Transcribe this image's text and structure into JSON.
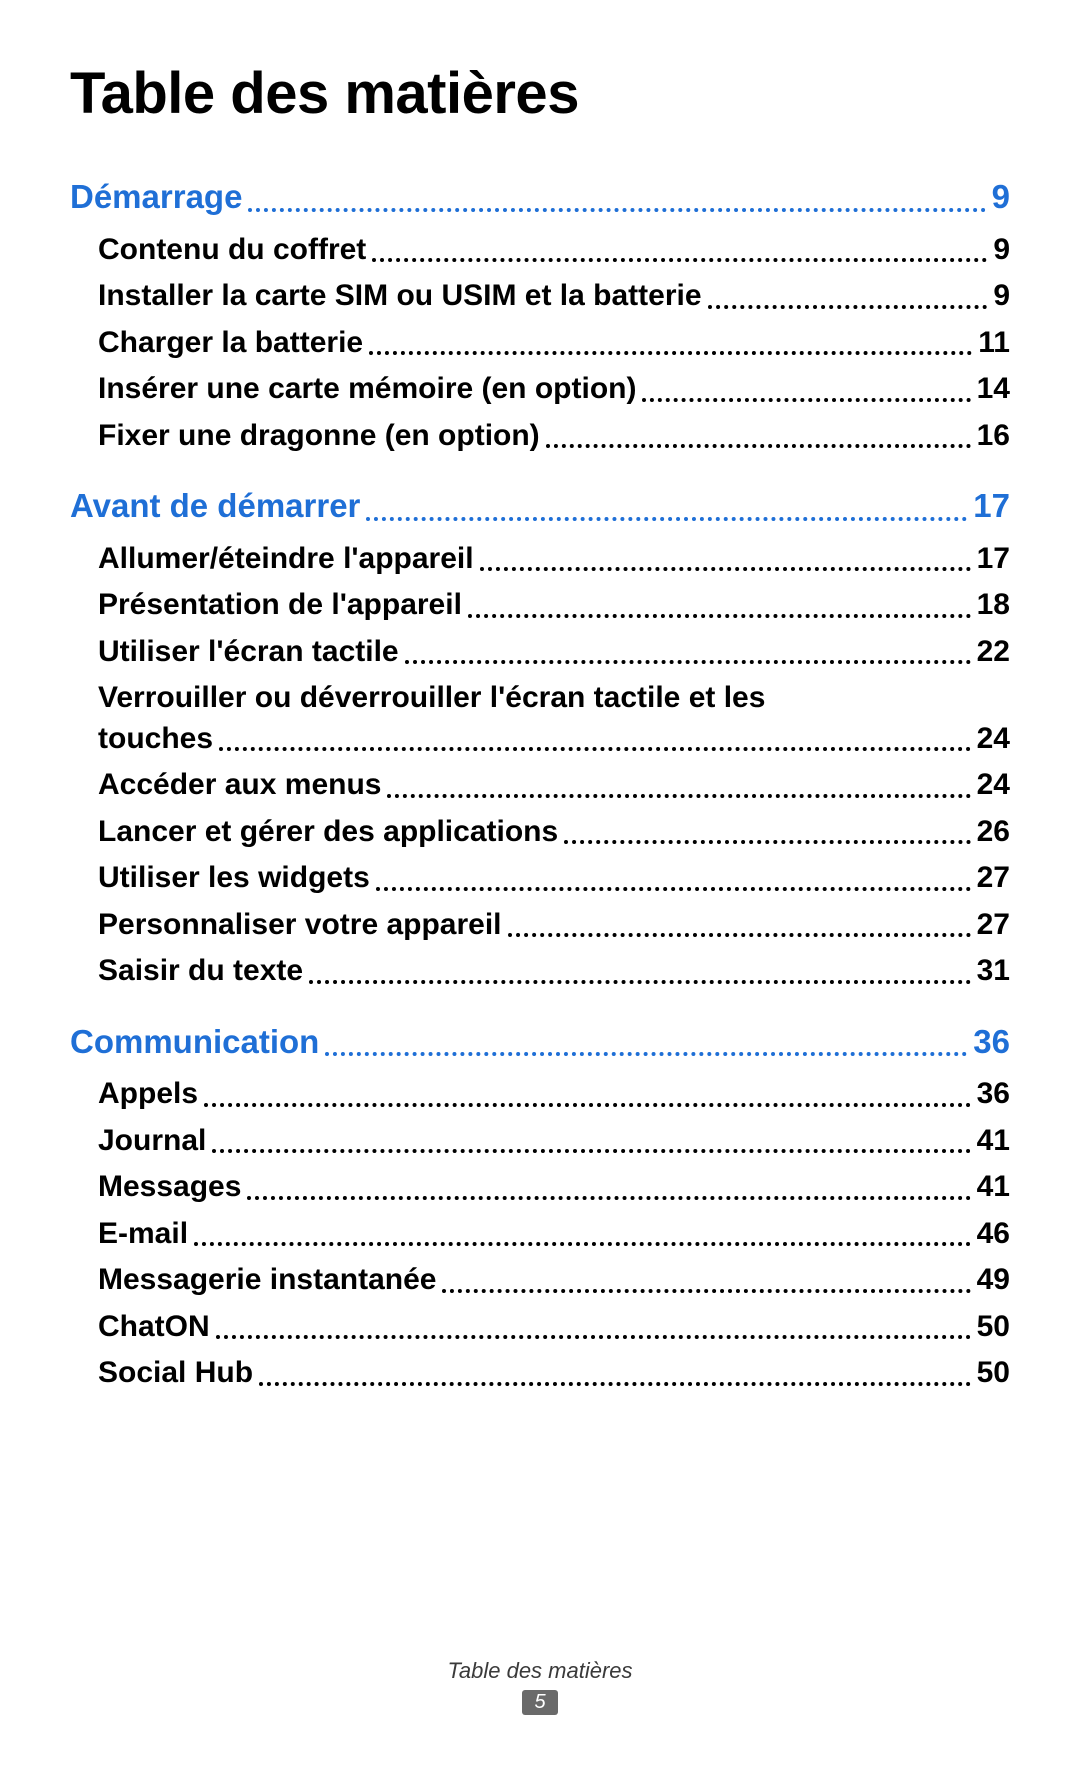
{
  "title": "Table des matières",
  "colors": {
    "accent": "#1f6fd6",
    "text": "#000000",
    "footer_text": "#3a3a3a",
    "badge_bg": "#6a6a6a",
    "badge_fg": "#ffffff",
    "background": "#ffffff"
  },
  "typography": {
    "title_fontsize": 58,
    "section_fontsize": 33,
    "item_fontsize": 30,
    "footer_fontsize": 22,
    "badge_fontsize": 20,
    "font_weight_title": 700,
    "font_weight_section": 600,
    "font_weight_item": 700
  },
  "sections": [
    {
      "label": "Démarrage",
      "page": "9",
      "items": [
        {
          "label": "Contenu du coffret",
          "page": "9"
        },
        {
          "label": "Installer la carte SIM ou USIM et la batterie",
          "page": "9"
        },
        {
          "label": "Charger la batterie",
          "page": "11"
        },
        {
          "label": "Insérer une carte mémoire (en option)",
          "page": "14"
        },
        {
          "label": "Fixer une dragonne (en option)",
          "page": "16"
        }
      ]
    },
    {
      "label": "Avant de démarrer",
      "page": "17",
      "items": [
        {
          "label": "Allumer/éteindre l'appareil",
          "page": "17"
        },
        {
          "label": "Présentation de l'appareil",
          "page": "18"
        },
        {
          "label": "Utiliser l'écran tactile",
          "page": "22"
        },
        {
          "label_line1": "Verrouiller ou déverrouiller l'écran tactile et les",
          "label_line2": "touches",
          "page": "24",
          "multiline": true
        },
        {
          "label": "Accéder aux menus",
          "page": "24"
        },
        {
          "label": "Lancer et gérer des applications",
          "page": "26"
        },
        {
          "label": "Utiliser les widgets",
          "page": "27"
        },
        {
          "label": "Personnaliser votre appareil",
          "page": "27"
        },
        {
          "label": "Saisir du texte",
          "page": "31"
        }
      ]
    },
    {
      "label": "Communication",
      "page": "36",
      "items": [
        {
          "label": "Appels",
          "page": "36"
        },
        {
          "label": "Journal",
          "page": "41"
        },
        {
          "label": "Messages",
          "page": "41"
        },
        {
          "label": "E-mail",
          "page": "46"
        },
        {
          "label": "Messagerie instantanée",
          "page": "49"
        },
        {
          "label": "ChatON",
          "page": "50"
        },
        {
          "label": "Social Hub",
          "page": "50"
        }
      ]
    }
  ],
  "footer": {
    "title": "Table des matières",
    "page_number": "5"
  }
}
